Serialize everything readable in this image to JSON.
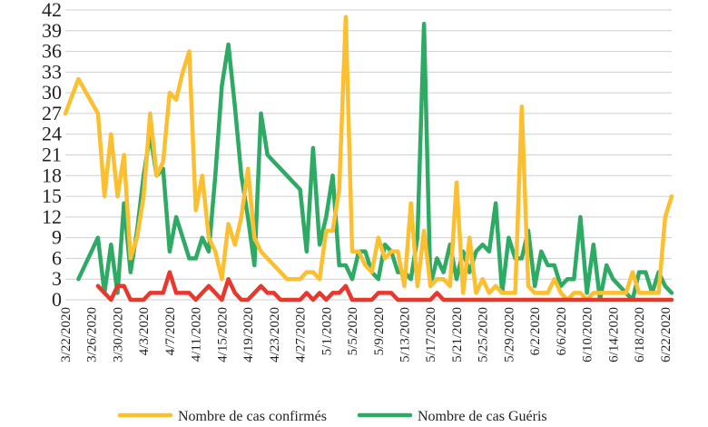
{
  "chart_data": {
    "type": "line",
    "title": "",
    "xlabel": "",
    "ylabel": "",
    "ylim": [
      0,
      42
    ],
    "yticks": [
      "0",
      "3",
      "6",
      "9",
      "12",
      "15",
      "18",
      "21",
      "24",
      "27",
      "30",
      "33",
      "36",
      "39",
      "42"
    ],
    "grid": "horizontal",
    "legend_position": "bottom",
    "x_start": "3/22/2020",
    "x_tick_labels": [
      "3/22/2020",
      "3/26/2020",
      "3/30/2020",
      "4/3/2020",
      "4/7/2020",
      "4/11/2020",
      "4/15/2020",
      "4/19/2020",
      "4/23/2020",
      "4/27/2020",
      "5/1/2020",
      "5/5/2020",
      "5/9/2020",
      "5/13/2020",
      "5/17/2020",
      "5/21/2020",
      "5/25/2020",
      "5/29/2020",
      "6/2/2020",
      "6/6/2020",
      "6/10/2020",
      "6/14/2020",
      "6/18/2020",
      "6/22/2020"
    ],
    "series": [
      {
        "name": "Nombre de cas confirmés",
        "color": "#FBBF30",
        "values": [
          [
            0,
            27
          ],
          [
            2,
            32
          ],
          [
            5,
            27
          ],
          [
            6,
            15
          ],
          [
            7,
            24
          ],
          [
            8,
            15
          ],
          [
            9,
            21
          ],
          [
            10,
            6
          ],
          [
            11,
            9
          ],
          [
            12,
            15
          ],
          [
            13,
            27
          ],
          [
            14,
            18
          ],
          [
            15,
            20
          ],
          [
            16,
            30
          ],
          [
            17,
            29
          ],
          [
            18,
            33
          ],
          [
            19,
            36
          ],
          [
            20,
            13
          ],
          [
            21,
            18
          ],
          [
            22,
            9
          ],
          [
            23,
            7
          ],
          [
            24,
            3
          ],
          [
            25,
            11
          ],
          [
            26,
            8
          ],
          [
            27,
            12
          ],
          [
            28,
            19
          ],
          [
            29,
            9
          ],
          [
            30,
            7
          ],
          [
            31,
            6
          ],
          [
            32,
            5
          ],
          [
            33,
            4
          ],
          [
            34,
            3
          ],
          [
            35,
            3
          ],
          [
            36,
            3
          ],
          [
            37,
            4
          ],
          [
            38,
            4
          ],
          [
            39,
            3
          ],
          [
            40,
            10
          ],
          [
            41,
            10
          ],
          [
            42,
            16
          ],
          [
            43,
            41
          ],
          [
            44,
            7
          ],
          [
            45,
            7
          ],
          [
            46,
            5
          ],
          [
            47,
            4
          ],
          [
            48,
            9
          ],
          [
            49,
            6
          ],
          [
            50,
            7
          ],
          [
            51,
            7
          ],
          [
            52,
            2
          ],
          [
            53,
            14
          ],
          [
            54,
            2
          ],
          [
            55,
            10
          ],
          [
            56,
            2
          ],
          [
            57,
            3
          ],
          [
            58,
            3
          ],
          [
            59,
            2
          ],
          [
            60,
            17
          ],
          [
            61,
            1
          ],
          [
            62,
            9
          ],
          [
            63,
            1
          ],
          [
            64,
            3
          ],
          [
            65,
            1
          ],
          [
            66,
            2
          ],
          [
            67,
            1
          ],
          [
            68,
            1
          ],
          [
            69,
            1
          ],
          [
            70,
            28
          ],
          [
            71,
            2
          ],
          [
            72,
            1
          ],
          [
            73,
            1
          ],
          [
            74,
            1
          ],
          [
            75,
            3
          ],
          [
            76,
            1
          ],
          [
            77,
            0
          ],
          [
            78,
            1
          ],
          [
            79,
            1
          ],
          [
            80,
            0
          ],
          [
            81,
            1
          ],
          [
            82,
            1
          ],
          [
            83,
            1
          ],
          [
            84,
            1
          ],
          [
            85,
            1
          ],
          [
            86,
            1
          ],
          [
            87,
            4
          ],
          [
            88,
            1
          ],
          [
            89,
            1
          ],
          [
            90,
            1
          ],
          [
            91,
            1
          ],
          [
            92,
            12
          ],
          [
            93,
            15
          ]
        ]
      },
      {
        "name": "Nombre de cas Guéris",
        "color": "#2DAA64",
        "values": [
          [
            2,
            3
          ],
          [
            5,
            9
          ],
          [
            6,
            1
          ],
          [
            7,
            8
          ],
          [
            8,
            1
          ],
          [
            9,
            14
          ],
          [
            10,
            4
          ],
          [
            11,
            10
          ],
          [
            12,
            18
          ],
          [
            13,
            24
          ],
          [
            14,
            18
          ],
          [
            15,
            19
          ],
          [
            16,
            7
          ],
          [
            17,
            12
          ],
          [
            18,
            9
          ],
          [
            19,
            6
          ],
          [
            20,
            6
          ],
          [
            21,
            9
          ],
          [
            22,
            7
          ],
          [
            23,
            18
          ],
          [
            24,
            31
          ],
          [
            25,
            37
          ],
          [
            26,
            28
          ],
          [
            27,
            18
          ],
          [
            28,
            12
          ],
          [
            29,
            5
          ],
          [
            30,
            27
          ],
          [
            31,
            21
          ],
          [
            32,
            20
          ],
          [
            33,
            19
          ],
          [
            34,
            18
          ],
          [
            35,
            17
          ],
          [
            36,
            16
          ],
          [
            37,
            7
          ],
          [
            38,
            22
          ],
          [
            39,
            8
          ],
          [
            40,
            12
          ],
          [
            41,
            18
          ],
          [
            42,
            5
          ],
          [
            43,
            5
          ],
          [
            44,
            3
          ],
          [
            45,
            7
          ],
          [
            46,
            7
          ],
          [
            47,
            4
          ],
          [
            48,
            3
          ],
          [
            49,
            8
          ],
          [
            50,
            7
          ],
          [
            51,
            4
          ],
          [
            52,
            4
          ],
          [
            53,
            3
          ],
          [
            54,
            9
          ],
          [
            55,
            40
          ],
          [
            56,
            2
          ],
          [
            57,
            6
          ],
          [
            58,
            4
          ],
          [
            59,
            8
          ],
          [
            60,
            3
          ],
          [
            61,
            7
          ],
          [
            62,
            4
          ],
          [
            63,
            7
          ],
          [
            64,
            8
          ],
          [
            65,
            7
          ],
          [
            66,
            14
          ],
          [
            67,
            1
          ],
          [
            68,
            9
          ],
          [
            69,
            6
          ],
          [
            70,
            6
          ],
          [
            71,
            10
          ],
          [
            72,
            2
          ],
          [
            73,
            7
          ],
          [
            74,
            5
          ],
          [
            75,
            5
          ],
          [
            76,
            2
          ],
          [
            77,
            3
          ],
          [
            78,
            3
          ],
          [
            79,
            12
          ],
          [
            80,
            1
          ],
          [
            81,
            8
          ],
          [
            82,
            0
          ],
          [
            83,
            5
          ],
          [
            84,
            3
          ],
          [
            85,
            2
          ],
          [
            86,
            1
          ],
          [
            87,
            0
          ],
          [
            88,
            4
          ],
          [
            89,
            4
          ],
          [
            90,
            1
          ],
          [
            91,
            4
          ],
          [
            92,
            2
          ],
          [
            93,
            1
          ]
        ]
      },
      {
        "name": "",
        "color": "#E8372C",
        "values": [
          [
            5,
            2
          ],
          [
            6,
            1
          ],
          [
            7,
            0
          ],
          [
            8,
            2
          ],
          [
            9,
            2
          ],
          [
            10,
            0
          ],
          [
            11,
            0
          ],
          [
            12,
            0
          ],
          [
            13,
            1
          ],
          [
            14,
            1
          ],
          [
            15,
            1
          ],
          [
            16,
            4
          ],
          [
            17,
            1
          ],
          [
            18,
            1
          ],
          [
            19,
            1
          ],
          [
            20,
            0
          ],
          [
            21,
            1
          ],
          [
            22,
            2
          ],
          [
            23,
            1
          ],
          [
            24,
            0
          ],
          [
            25,
            3
          ],
          [
            26,
            1
          ],
          [
            27,
            0
          ],
          [
            28,
            0
          ],
          [
            29,
            1
          ],
          [
            30,
            2
          ],
          [
            31,
            1
          ],
          [
            32,
            1
          ],
          [
            33,
            0
          ],
          [
            34,
            0
          ],
          [
            35,
            0
          ],
          [
            36,
            0
          ],
          [
            37,
            1
          ],
          [
            38,
            0
          ],
          [
            39,
            1
          ],
          [
            40,
            0
          ],
          [
            41,
            1
          ],
          [
            42,
            1
          ],
          [
            43,
            2
          ],
          [
            44,
            0
          ],
          [
            45,
            0
          ],
          [
            46,
            0
          ],
          [
            47,
            0
          ],
          [
            48,
            1
          ],
          [
            49,
            1
          ],
          [
            50,
            1
          ],
          [
            51,
            0
          ],
          [
            52,
            0
          ],
          [
            53,
            0
          ],
          [
            54,
            0
          ],
          [
            55,
            0
          ],
          [
            56,
            0
          ],
          [
            57,
            1
          ],
          [
            58,
            0
          ],
          [
            59,
            0
          ],
          [
            60,
            0
          ],
          [
            61,
            0
          ],
          [
            62,
            0
          ],
          [
            63,
            0
          ],
          [
            64,
            0
          ],
          [
            65,
            0
          ],
          [
            66,
            0
          ],
          [
            67,
            0
          ],
          [
            68,
            0
          ],
          [
            69,
            0
          ],
          [
            70,
            0
          ],
          [
            71,
            0
          ],
          [
            72,
            0
          ],
          [
            73,
            0
          ],
          [
            74,
            0
          ],
          [
            75,
            0
          ],
          [
            76,
            0
          ],
          [
            77,
            0
          ],
          [
            78,
            0
          ],
          [
            79,
            0
          ],
          [
            80,
            0
          ],
          [
            81,
            0
          ],
          [
            82,
            0
          ],
          [
            83,
            0
          ],
          [
            84,
            0
          ],
          [
            85,
            0
          ],
          [
            86,
            0
          ],
          [
            87,
            0
          ],
          [
            88,
            0
          ],
          [
            89,
            0
          ],
          [
            90,
            0
          ],
          [
            91,
            0
          ],
          [
            92,
            0
          ],
          [
            93,
            0
          ]
        ]
      }
    ],
    "legend": [
      {
        "label": "Nombre de cas confirmés",
        "color": "#FBBF30"
      },
      {
        "label": "Nombre de cas Guéris",
        "color": "#2DAA64"
      }
    ]
  }
}
